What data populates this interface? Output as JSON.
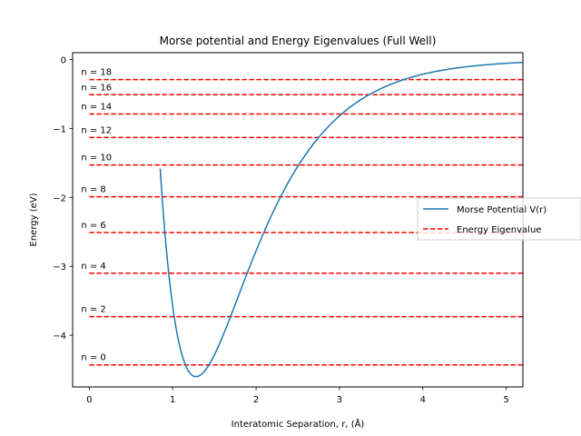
{
  "chart_data": {
    "type": "line",
    "title": "Morse potential and Energy Eigenvalues (Full Well)",
    "xlabel": "Interatomic Separation, r, (Å)",
    "ylabel": "Energy (eV)",
    "xlim": [
      -0.2,
      5.2
    ],
    "ylim": [
      -4.75,
      0.1
    ],
    "x_ticks": [
      0,
      1,
      2,
      3,
      4,
      5
    ],
    "x_tick_labels": [
      "0",
      "1",
      "2",
      "3",
      "4",
      "5"
    ],
    "y_ticks": [
      0,
      -1,
      -2,
      -3,
      -4
    ],
    "y_tick_labels": [
      "0",
      "−1",
      "−2",
      "−3",
      "−4"
    ],
    "grid": false,
    "legend_position": "right",
    "morse": {
      "name": "Morse Potential V(r)",
      "color": "#1f77b4",
      "D_e": 4.6,
      "a": 1.38,
      "r_e": 1.28
    },
    "eigenvalues": {
      "name": "Energy Eigenvalue",
      "color": "#ff0000",
      "x_range": [
        0,
        5.2
      ],
      "levels": [
        {
          "label": "n = 0",
          "energy": -4.43
        },
        {
          "label": "n = 2",
          "energy": -3.73
        },
        {
          "label": "n = 4",
          "energy": -3.1
        },
        {
          "label": "n = 6",
          "energy": -2.51
        },
        {
          "label": "n = 8",
          "energy": -1.99
        },
        {
          "label": "n = 10",
          "energy": -1.53
        },
        {
          "label": "n = 12",
          "energy": -1.13
        },
        {
          "label": "n = 14",
          "energy": -0.79
        },
        {
          "label": "n = 16",
          "energy": -0.51
        },
        {
          "label": "n = 18",
          "energy": -0.29
        }
      ]
    }
  }
}
